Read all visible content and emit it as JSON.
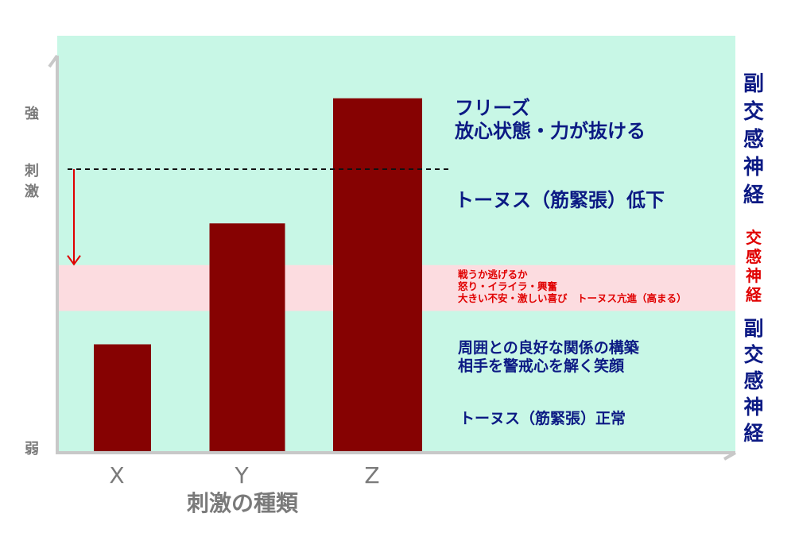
{
  "chart_data": {
    "type": "bar",
    "title": "",
    "xlabel": "刺激の種類",
    "ylabel": "刺激",
    "y_axis_top_label": "強",
    "y_axis_bottom_label": "弱",
    "categories": [
      "X",
      "Y",
      "Z"
    ],
    "values": [
      26,
      55,
      85
    ],
    "ylim": [
      0,
      100
    ],
    "threshold_value": 68,
    "grid": false
  },
  "bands": {
    "sympathetic_range": [
      34,
      45
    ]
  },
  "annotations": {
    "freeze_line1": "フリーズ",
    "freeze_line2": "放心状態・力が抜ける",
    "tonus_low": "トーヌス（筋緊張）低下",
    "fight_line1": "戦うか逃げるか",
    "fight_line2": "怒り・イライラ・興奮",
    "fight_line3": "大きい不安・激しい喜び　トーヌス亢進（高まる）",
    "calm_line1": "周囲との良好な関係の構築",
    "calm_line2": "相手を警戒心を解く笑顔",
    "tonus_normal": "トーヌス（筋緊張）正常"
  },
  "side_labels": {
    "parasympathetic_upper": [
      "副",
      "交",
      "感",
      "神",
      "経"
    ],
    "sympathetic": [
      "交",
      "感",
      "神",
      "経"
    ],
    "parasympathetic_lower": [
      "副",
      "交",
      "感",
      "神",
      "経"
    ]
  },
  "colors": {
    "background_panel": "#c8f7e6",
    "sympathetic_band": "#fcdce0",
    "bar": "#860202",
    "dark_blue_text": "#0c1a84",
    "red_text": "#e00000",
    "axis": "#c8c8c8",
    "axis_text": "#7a7a7a"
  }
}
